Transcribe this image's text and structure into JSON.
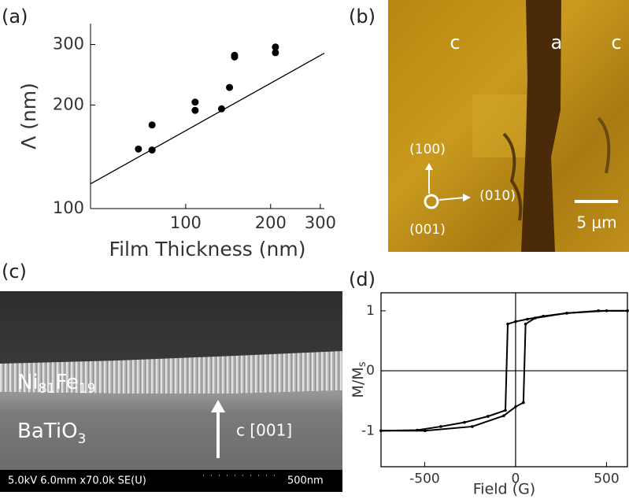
{
  "chart_data": [
    {
      "type": "scatter",
      "label": "(a)",
      "xlabel": "Film Thickness (nm)",
      "ylabel": "Λ (nm)",
      "xlog": true,
      "ylog": true,
      "xlim": [
        46,
        310
      ],
      "ylim": [
        100,
        345
      ],
      "xticks": [
        100,
        200,
        300
      ],
      "yticks": [
        100,
        200,
        300
      ],
      "color": "#000000",
      "x": [
        68,
        76,
        76,
        108,
        108,
        134,
        143,
        149,
        149,
        208,
        208
      ],
      "values": [
        149,
        148,
        175,
        204,
        193,
        195,
        225,
        279,
        276,
        295,
        284
      ],
      "fit": {
        "x": [
          46,
          310
        ],
        "values": [
          118,
          283
        ]
      }
    },
    {
      "type": "line",
      "label": "(d)",
      "xlabel": "Field (G)",
      "ylabel": "M/M",
      "ylabel_sub": "s",
      "xlim": [
        -740,
        615
      ],
      "ylim": [
        -1.6,
        1.3
      ],
      "xticks": [
        -500,
        0,
        500
      ],
      "yticks": [
        -1,
        0,
        1
      ],
      "zero_lines": true,
      "color": "#000000",
      "branches": [
        {
          "x": [
            615,
            500,
            281,
            152,
            65,
            0,
            -43,
            -56,
            -152,
            -281,
            -411,
            -541,
            -740
          ],
          "values": [
            1.0,
            1.0,
            0.96,
            0.91,
            0.86,
            0.82,
            0.78,
            -0.66,
            -0.76,
            -0.86,
            -0.93,
            -0.99,
            -1.0
          ]
        },
        {
          "x": [
            -740,
            -498,
            -238,
            -65,
            0,
            43,
            55,
            108,
            281,
            455,
            615
          ],
          "values": [
            -1.0,
            -1.0,
            -0.93,
            -0.75,
            -0.6,
            -0.53,
            0.78,
            0.88,
            0.96,
            1.0,
            1.0
          ]
        }
      ]
    }
  ],
  "images": [
    {
      "label": "(b)",
      "domains": [
        "c",
        "a",
        "c"
      ],
      "directions": [
        "(100)",
        "(010)",
        "(001)"
      ],
      "scale_bar": "5 μm"
    },
    {
      "label": "(c)",
      "film": [
        "Ni",
        "81",
        "Fe",
        "19"
      ],
      "substrate": [
        "BaTiO",
        "3"
      ],
      "arrow_label": "c [001]",
      "info": "5.0kV 6.0mm x70.0k SE(U)",
      "scale_bar": "500nm"
    }
  ]
}
